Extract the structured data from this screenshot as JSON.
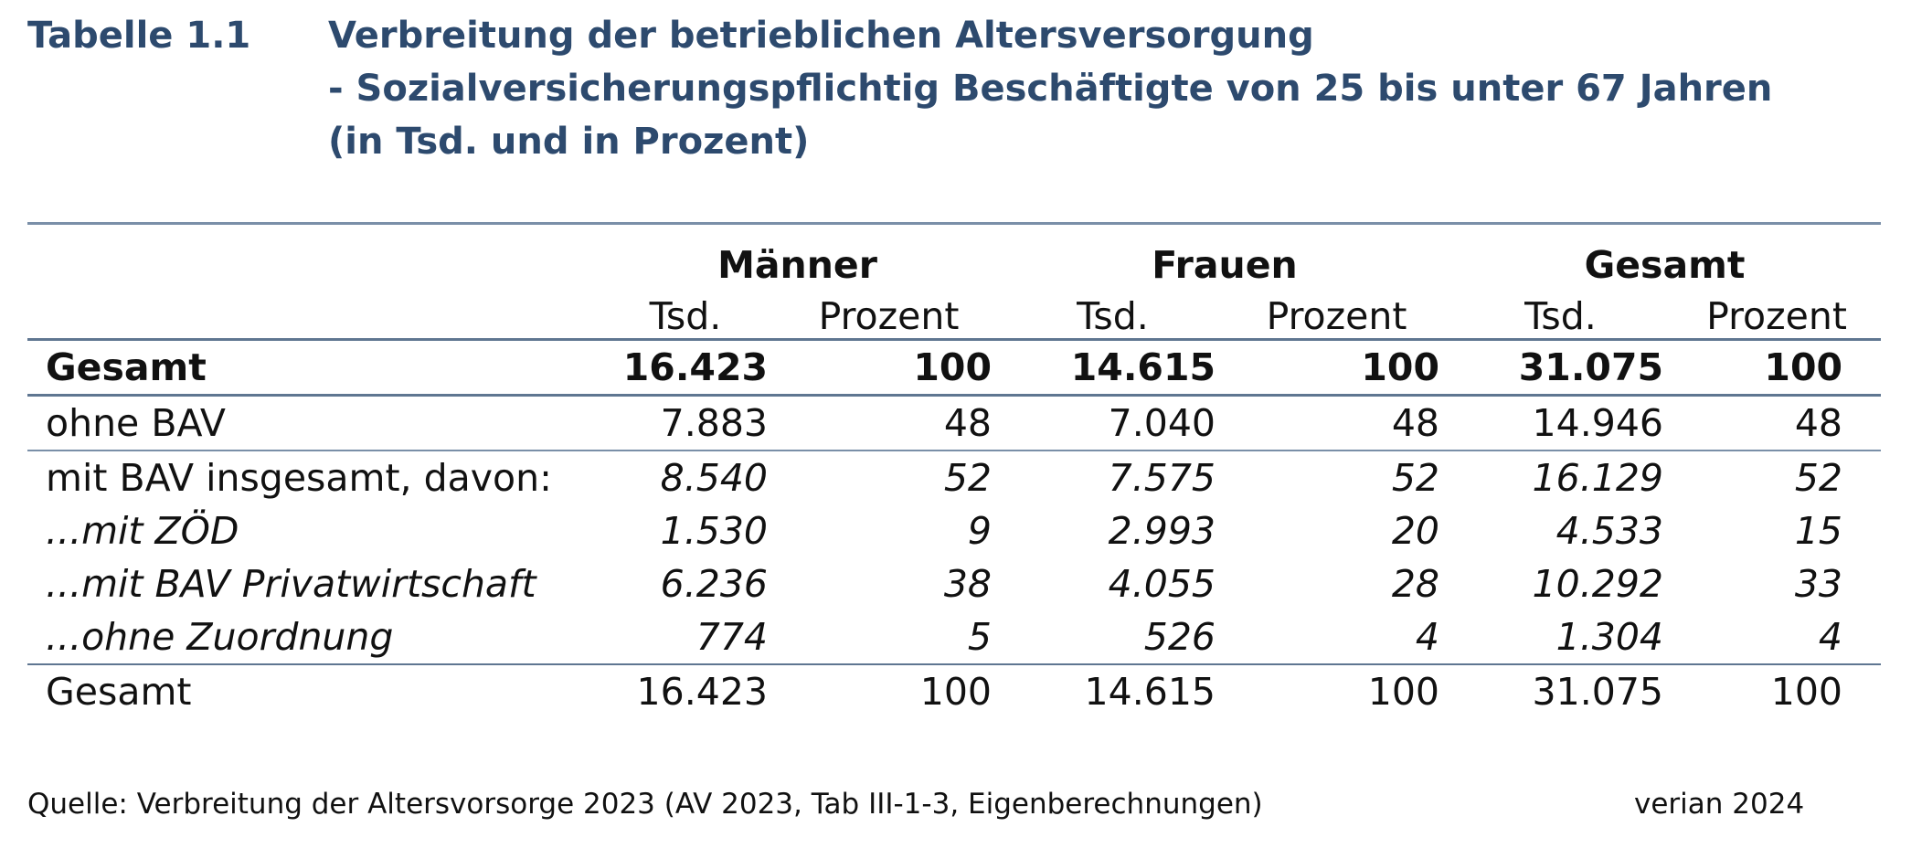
{
  "document": {
    "table_label": "Tabelle 1.1",
    "title_lines": [
      "Verbreitung der betrieblichen Altersversorgung",
      "- Sozialversicherungspflichtig Beschäftigte von 25 bis unter 67 Jahren",
      "(in Tsd. und in Prozent)"
    ],
    "groups": [
      "Männer",
      "Frauen",
      "Gesamt"
    ],
    "subheaders": [
      "Tsd.",
      "Prozent",
      "Tsd.",
      "Prozent",
      "Tsd.",
      "Prozent"
    ],
    "rows": [
      {
        "label": "Gesamt",
        "values": [
          "16.423",
          "100",
          "14.615",
          "100",
          "31.075",
          "100"
        ]
      },
      {
        "label": "ohne BAV",
        "values": [
          "7.883",
          "48",
          "7.040",
          "48",
          "14.946",
          "48"
        ]
      },
      {
        "label": "mit BAV insgesamt, davon:",
        "values": [
          "8.540",
          "52",
          "7.575",
          "52",
          "16.129",
          "52"
        ]
      },
      {
        "label": "...mit ZÖD",
        "values": [
          "1.530",
          "9",
          "2.993",
          "20",
          "4.533",
          "15"
        ]
      },
      {
        "label": "...mit BAV Privatwirtschaft",
        "values": [
          "6.236",
          "38",
          "4.055",
          "28",
          "10.292",
          "33"
        ]
      },
      {
        "label": "...ohne Zuordnung",
        "values": [
          "774",
          "5",
          "526",
          "4",
          "1.304",
          "4"
        ]
      },
      {
        "label": "Gesamt",
        "values": [
          "16.423",
          "100",
          "14.615",
          "100",
          "31.075",
          "100"
        ]
      }
    ],
    "source": "Quelle: Verbreitung der Altersvorsorge 2023 (AV 2023, Tab III-1-3, Eigenberechnungen)",
    "credit": "verian 2024",
    "colors": {
      "title": "#2d4a6e",
      "rule": "#5f7691",
      "text": "#111111"
    }
  }
}
